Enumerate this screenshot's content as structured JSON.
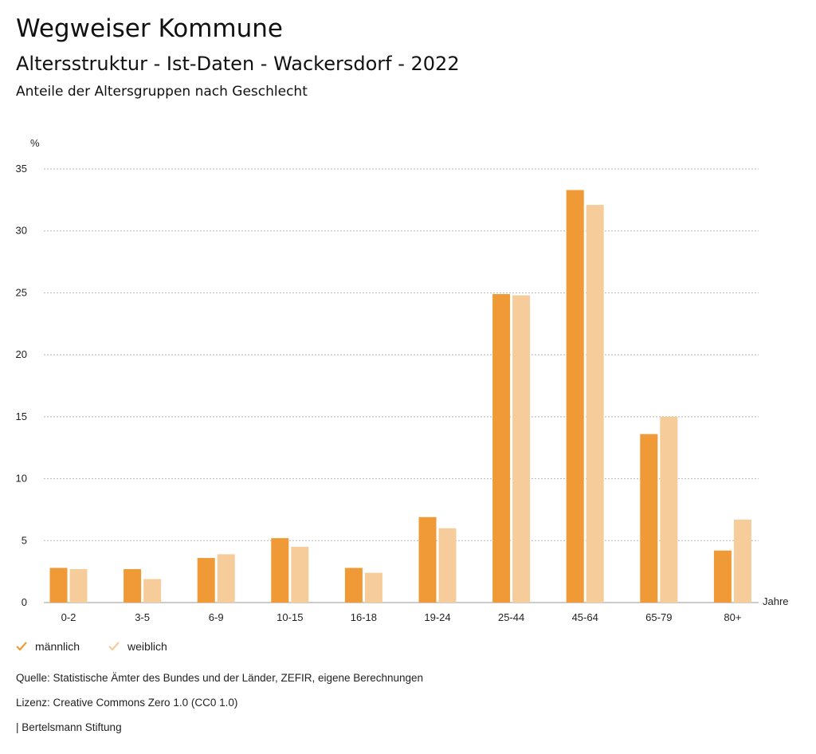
{
  "header": {
    "title": "Wegweiser Kommune",
    "subtitle": "Altersstruktur - Ist-Daten - Wackersdorf - 2022",
    "subsubtitle": "Anteile der Altersgruppen nach Geschlecht"
  },
  "chart_data": {
    "type": "bar",
    "ylabel": "%",
    "xlabel": "Jahre",
    "ylim": [
      0,
      35
    ],
    "yticks": [
      0,
      5,
      10,
      15,
      20,
      25,
      30,
      35
    ],
    "grid": true,
    "legend_position": "bottom-left",
    "categories": [
      "0-2",
      "3-5",
      "6-9",
      "10-15",
      "16-18",
      "19-24",
      "25-44",
      "45-64",
      "65-79",
      "80+"
    ],
    "series": [
      {
        "name": "männlich",
        "color": "#ef9a37",
        "values": [
          2.8,
          2.7,
          3.6,
          5.2,
          2.8,
          6.9,
          24.9,
          33.3,
          13.6,
          4.2
        ]
      },
      {
        "name": "weiblich",
        "color": "#f5cc9a",
        "values": [
          2.7,
          1.9,
          3.9,
          4.5,
          2.4,
          6.0,
          24.8,
          32.1,
          15.0,
          6.7
        ]
      }
    ]
  },
  "footer": {
    "source": "Quelle: Statistische Ämter des Bundes und der Länder, ZEFIR, eigene Berechnungen",
    "license": "Lizenz: Creative Commons Zero 1.0 (CC0 1.0)",
    "publisher": "| Bertelsmann Stiftung"
  }
}
